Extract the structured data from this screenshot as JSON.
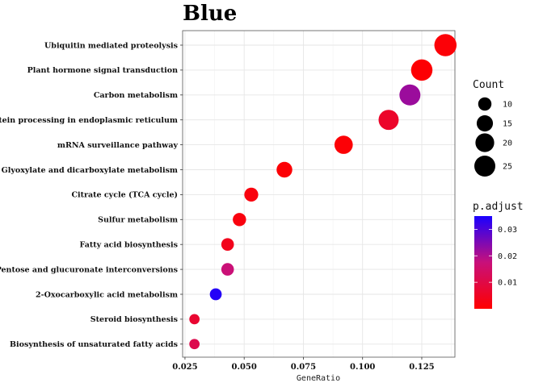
{
  "chart_data": {
    "type": "scatter",
    "title": "Blue",
    "xlabel": "GeneRatio",
    "ylabel": "",
    "xlim": [
      0.024,
      0.139
    ],
    "xticks": [
      0.025,
      0.05,
      0.075,
      0.1,
      0.125
    ],
    "xtick_labels": [
      "0.025",
      "0.050",
      "0.075",
      "0.100",
      "0.125"
    ],
    "grid": true,
    "legend_position": "right",
    "categories": [
      "Ubiquitin mediated proteolysis",
      "Plant hormone signal transduction",
      "Carbon metabolism",
      "Protein processing in endoplasmic reticulum",
      "mRNA surveillance pathway",
      "Glyoxylate and dicarboxylate metabolism",
      "Citrate cycle (TCA cycle)",
      "Sulfur metabolism",
      "Fatty acid biosynthesis",
      "Pentose and glucuronate interconversions",
      "2-Oxocarboxylic acid metabolism",
      "Steroid biosynthesis",
      "Biosynthesis of unsaturated fatty acids"
    ],
    "points": [
      {
        "term": "Ubiquitin mediated proteolysis",
        "gene_ratio": 0.135,
        "count": 28,
        "p_adjust": 0.001
      },
      {
        "term": "Plant hormone signal transduction",
        "gene_ratio": 0.125,
        "count": 26,
        "p_adjust": 0.0005
      },
      {
        "term": "Carbon metabolism",
        "gene_ratio": 0.12,
        "count": 25,
        "p_adjust": 0.022
      },
      {
        "term": "Protein processing in endoplasmic reticulum",
        "gene_ratio": 0.111,
        "count": 23,
        "p_adjust": 0.006
      },
      {
        "term": "mRNA surveillance pathway",
        "gene_ratio": 0.092,
        "count": 19,
        "p_adjust": 0.0008
      },
      {
        "term": "Glyoxylate and dicarboxylate metabolism",
        "gene_ratio": 0.067,
        "count": 14,
        "p_adjust": 0.0008
      },
      {
        "term": "Citrate cycle (TCA cycle)",
        "gene_ratio": 0.053,
        "count": 11,
        "p_adjust": 0.002
      },
      {
        "term": "Sulfur metabolism",
        "gene_ratio": 0.048,
        "count": 10,
        "p_adjust": 0.002
      },
      {
        "term": "Fatty acid biosynthesis",
        "gene_ratio": 0.043,
        "count": 9,
        "p_adjust": 0.004
      },
      {
        "term": "Pentose and glucuronate interconversions",
        "gene_ratio": 0.043,
        "count": 9,
        "p_adjust": 0.017
      },
      {
        "term": "2-Oxocarboxylic acid metabolism",
        "gene_ratio": 0.038,
        "count": 8,
        "p_adjust": 0.034
      },
      {
        "term": "Steroid biosynthesis",
        "gene_ratio": 0.029,
        "count": 6,
        "p_adjust": 0.007
      },
      {
        "term": "Biosynthesis of unsaturated fatty acids",
        "gene_ratio": 0.029,
        "count": 6,
        "p_adjust": 0.011
      }
    ],
    "size_legend": {
      "title": "Count",
      "values": [
        10,
        15,
        20,
        25
      ],
      "labels": [
        "10",
        "15",
        "20",
        "25"
      ]
    },
    "color_legend": {
      "title": "p.adjust",
      "low_color": "#ff0000",
      "high_color": "#0000ff",
      "range": [
        0.0,
        0.035
      ],
      "ticks": [
        0.01,
        0.02,
        0.03
      ],
      "tick_labels": [
        "0.01",
        "0.02",
        "0.03"
      ]
    }
  }
}
